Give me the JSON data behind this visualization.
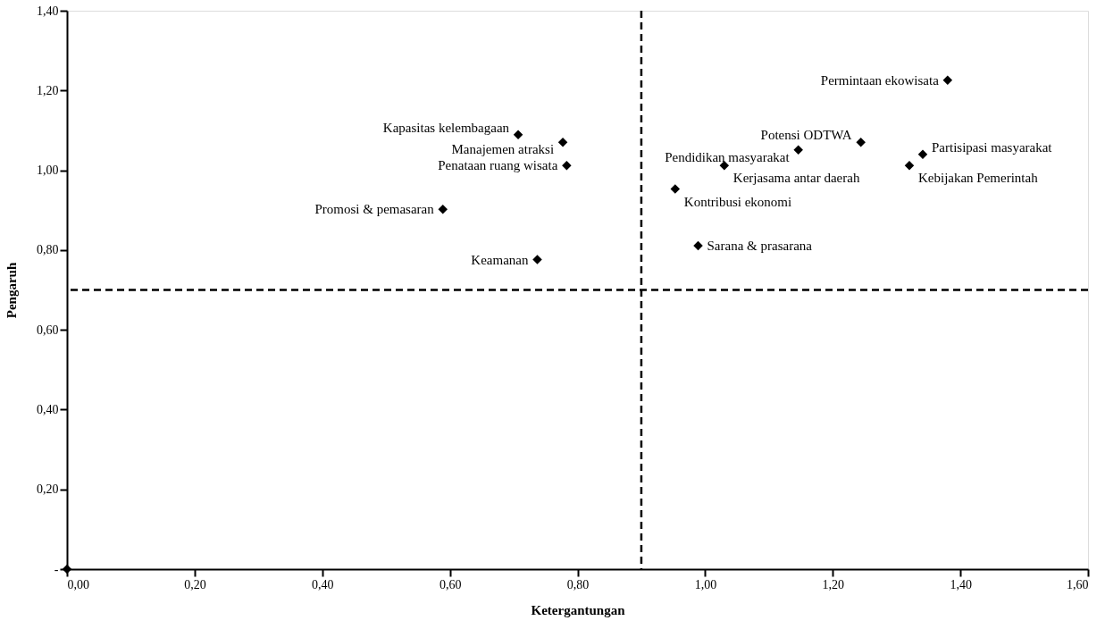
{
  "chart_data": {
    "type": "scatter",
    "xlabel": "Ketergantungan",
    "ylabel": "Pengaruh",
    "marker": "diamond",
    "grid": false,
    "series": [
      {
        "color": "#000000",
        "x": [
          0,
          1.38,
          1.244,
          1.341,
          1.32,
          1.146,
          1.03,
          0.953,
          0.989,
          0.707,
          0.777,
          0.783,
          0.589,
          0.737
        ],
        "values": [
          0,
          1.226,
          1.07,
          1.04,
          1.012,
          1.051,
          1.012,
          0.953,
          0.811,
          1.089,
          1.07,
          1.012,
          0.902,
          0.776
        ]
      }
    ],
    "xlim": [
      0,
      1.6
    ],
    "ylim": [
      0,
      1.4
    ],
    "xticks": [
      {
        "value": 0,
        "label": "0,00"
      },
      {
        "value": 0.2,
        "label": "0,20"
      },
      {
        "value": 0.4,
        "label": "0,40"
      },
      {
        "value": 0.6,
        "label": "0,60"
      },
      {
        "value": 0.8,
        "label": "0,80"
      },
      {
        "value": 1.0,
        "label": "1,00"
      },
      {
        "value": 1.2,
        "label": "1,20"
      },
      {
        "value": 1.4,
        "label": "1,40"
      },
      {
        "value": 1.6,
        "label": "1,60"
      }
    ],
    "yticks": [
      {
        "value": 0,
        "label": "-"
      },
      {
        "value": 0.2,
        "label": "0,20"
      },
      {
        "value": 0.4,
        "label": "0,40"
      },
      {
        "value": 0.6,
        "label": "0,60"
      },
      {
        "value": 0.8,
        "label": "0,80"
      },
      {
        "value": 1.0,
        "label": "1,00"
      },
      {
        "value": 1.2,
        "label": "1,20"
      },
      {
        "value": 1.4,
        "label": "1,40"
      }
    ],
    "ref_lines": [
      {
        "axis": "x",
        "value": 0.9,
        "line_style": "dashed"
      },
      {
        "axis": "y",
        "value": 0.7,
        "line_style": "dashed"
      }
    ],
    "annotations": [
      {
        "text": "Permintaan ekowisata",
        "x": 1.38,
        "y": 1.226
      },
      {
        "text": "Potensi ODTWA",
        "x": 1.244,
        "y": 1.07
      },
      {
        "text": "Partisipasi masyarakat",
        "x": 1.341,
        "y": 1.04
      },
      {
        "text": "Kebijakan Pemerintah",
        "x": 1.32,
        "y": 1.012
      },
      {
        "text": "Pendidikan masyarakat",
        "x": 1.146,
        "y": 1.051
      },
      {
        "text": "Kerjasama antar daerah",
        "x": 1.03,
        "y": 1.012
      },
      {
        "text": "Kontribusi ekonomi",
        "x": 0.953,
        "y": 0.953
      },
      {
        "text": "Sarana & prasarana",
        "x": 0.989,
        "y": 0.811
      },
      {
        "text": "Kapasitas kelembagaan",
        "x": 0.707,
        "y": 1.089
      },
      {
        "text": "Manajemen atraksi",
        "x": 0.777,
        "y": 1.07
      },
      {
        "text": "Penataan ruang wisata",
        "x": 0.783,
        "y": 1.012
      },
      {
        "text": "Promosi & pemasaran",
        "x": 0.589,
        "y": 0.902
      },
      {
        "text": "Keamanan",
        "x": 0.737,
        "y": 0.776
      }
    ]
  }
}
